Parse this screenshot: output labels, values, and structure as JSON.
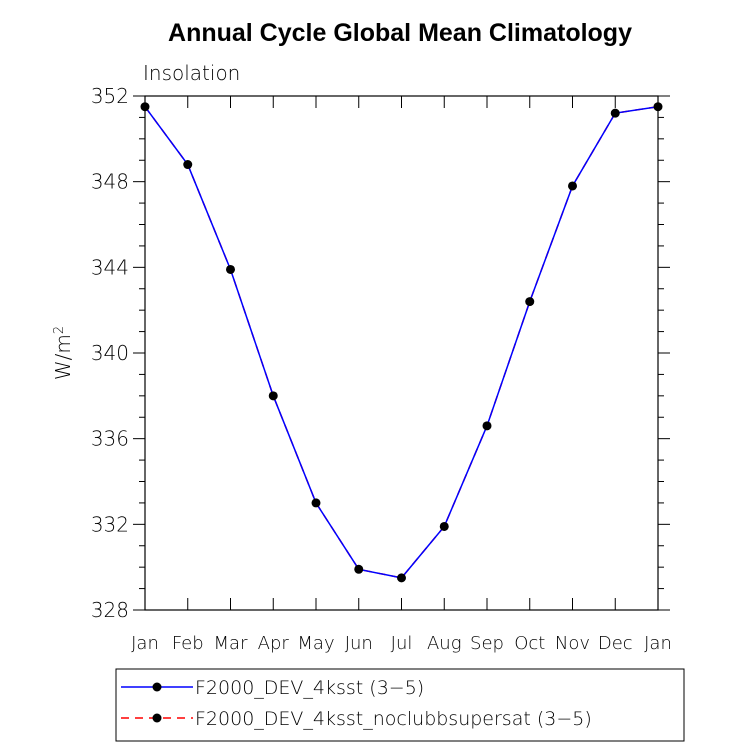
{
  "chart_data": {
    "type": "line",
    "title": "Annual Cycle Global Mean Climatology",
    "subtitle": "Insolation",
    "ylabel_base": "W/m",
    "ylabel_sup": "2",
    "xlabel": "",
    "categories": [
      "Jan",
      "Feb",
      "Mar",
      "Apr",
      "May",
      "Jun",
      "Jul",
      "Aug",
      "Sep",
      "Oct",
      "Nov",
      "Dec",
      "Jan"
    ],
    "ylim": [
      328,
      352
    ],
    "yticks": [
      328,
      332,
      336,
      340,
      344,
      348,
      352
    ],
    "ytick_labels": [
      "328",
      "332",
      "336",
      "340",
      "344",
      "348",
      "352"
    ],
    "series": [
      {
        "name": "F2000_DEV_4ksst (3−5)",
        "color": "#0000ff",
        "dash": "solid",
        "marker": "filled-circle",
        "values": [
          351.5,
          348.8,
          343.9,
          338.0,
          333.0,
          329.9,
          329.5,
          331.9,
          336.6,
          342.4,
          347.8,
          351.2,
          351.5
        ]
      },
      {
        "name": "F2000_DEV_4ksst_noclubbsupersat (3−5)",
        "color": "#ff0000",
        "dash": "dashed",
        "marker": "filled-circle",
        "values": [
          351.5,
          348.8,
          343.9,
          338.0,
          333.0,
          329.9,
          329.5,
          331.9,
          336.6,
          342.4,
          347.8,
          351.2,
          351.5
        ]
      }
    ],
    "grid": false,
    "legend_position": "bottom"
  }
}
